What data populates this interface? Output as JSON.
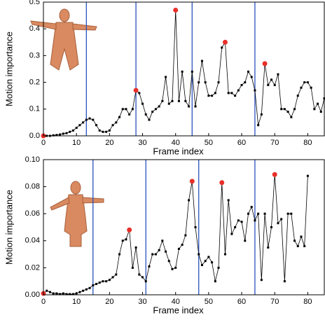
{
  "chart_data": [
    {
      "type": "line",
      "xlabel": "Frame index",
      "ylabel": "Motion importance",
      "xlim": [
        0,
        85
      ],
      "ylim": [
        0,
        0.5
      ],
      "xticks": [
        0,
        10,
        20,
        30,
        40,
        50,
        60,
        70,
        80
      ],
      "yticks": [
        {
          "value": 0,
          "label": "0.0"
        },
        0.1,
        0.2,
        0.3,
        0.4,
        0.5
      ],
      "x": [
        0,
        1,
        2,
        3,
        4,
        5,
        6,
        7,
        8,
        9,
        10,
        11,
        12,
        13,
        14,
        15,
        16,
        17,
        18,
        19,
        20,
        21,
        22,
        23,
        24,
        25,
        26,
        27,
        28,
        29,
        30,
        31,
        32,
        33,
        34,
        35,
        36,
        37,
        38,
        39,
        40,
        41,
        42,
        43,
        44,
        45,
        46,
        47,
        48,
        49,
        50,
        51,
        52,
        53,
        54,
        55,
        56,
        57,
        58,
        59,
        60,
        61,
        62,
        63,
        64,
        65,
        66,
        67,
        68,
        69,
        70,
        71,
        72,
        73,
        74,
        75,
        76,
        77,
        78,
        79,
        80,
        81,
        82,
        83,
        84,
        85
      ],
      "series": [
        {
          "color": "#000000",
          "values": [
            0.0,
            0.0,
            0.0,
            0.002,
            0.003,
            0.005,
            0.008,
            0.01,
            0.015,
            0.02,
            0.03,
            0.04,
            0.05,
            0.06,
            0.065,
            0.06,
            0.04,
            0.02,
            0.015,
            0.015,
            0.02,
            0.04,
            0.05,
            0.07,
            0.1,
            0.1,
            0.08,
            0.1,
            0.17,
            0.16,
            0.12,
            0.08,
            0.06,
            0.09,
            0.1,
            0.11,
            0.13,
            0.22,
            0.12,
            0.13,
            0.47,
            0.13,
            0.24,
            0.13,
            0.11,
            0.24,
            0.11,
            0.2,
            0.28,
            0.2,
            0.15,
            0.15,
            0.16,
            0.2,
            0.33,
            0.35,
            0.16,
            0.16,
            0.15,
            0.17,
            0.19,
            0.2,
            0.24,
            0.22,
            0.17,
            0.04,
            0.08,
            0.27,
            0.19,
            0.21,
            0.19,
            0.23,
            0.1,
            0.1,
            0.09,
            0.07,
            0.1,
            0.15,
            0.18,
            0.2,
            0.2,
            0.18,
            0.1,
            0.12,
            0.09,
            0.14
          ]
        }
      ],
      "highlights": {
        "color": "#e8302a",
        "x": [
          0,
          28,
          40,
          55,
          67
        ],
        "values": [
          0.0,
          0.17,
          0.47,
          0.35,
          0.27
        ]
      },
      "vlines": {
        "color": "#2a52be",
        "x": [
          13,
          28,
          45,
          64
        ]
      }
    },
    {
      "type": "line",
      "xlabel": "Frame index",
      "ylabel": "Motion importance",
      "xlim": [
        0,
        85
      ],
      "ylim": [
        0,
        0.1
      ],
      "xticks": [
        0,
        10,
        20,
        30,
        40,
        50,
        60,
        70,
        80
      ],
      "yticks": [
        {
          "value": 0,
          "label": "0.00"
        },
        0.02,
        0.04,
        0.06,
        0.08,
        {
          "value": 0.1,
          "label": "0.10"
        }
      ],
      "x": [
        0,
        1,
        2,
        3,
        4,
        5,
        6,
        7,
        8,
        9,
        10,
        11,
        12,
        13,
        14,
        15,
        16,
        17,
        18,
        19,
        20,
        21,
        22,
        23,
        24,
        25,
        26,
        27,
        28,
        29,
        30,
        31,
        32,
        33,
        34,
        35,
        36,
        37,
        38,
        39,
        40,
        41,
        42,
        43,
        44,
        45,
        46,
        47,
        48,
        49,
        50,
        51,
        52,
        53,
        54,
        55,
        56,
        57,
        58,
        59,
        60,
        61,
        62,
        63,
        64,
        65,
        66,
        67,
        68,
        69,
        70,
        71,
        72,
        73,
        74,
        75,
        76,
        77,
        78,
        79,
        80
      ],
      "series": [
        {
          "color": "#000000",
          "values": [
            0.001,
            0.003,
            0.002,
            0.001,
            0.001,
            0.0005,
            0.001,
            0.0005,
            0.0005,
            0.0005,
            0.001,
            0.002,
            0.003,
            0.004,
            0.005,
            0.007,
            0.008,
            0.009,
            0.01,
            0.01,
            0.011,
            0.013,
            0.015,
            0.03,
            0.04,
            0.041,
            0.048,
            0.02,
            0.035,
            0.015,
            0.013,
            0.01,
            0.021,
            0.03,
            0.03,
            0.033,
            0.04,
            0.032,
            0.025,
            0.019,
            0.02,
            0.034,
            0.037,
            0.044,
            0.07,
            0.084,
            0.05,
            0.03,
            0.022,
            0.025,
            0.028,
            0.024,
            0.01,
            0.02,
            0.083,
            0.03,
            0.07,
            0.045,
            0.05,
            0.055,
            0.054,
            0.04,
            0.06,
            0.065,
            0.055,
            0.06,
            0.011,
            0.06,
            0.035,
            0.05,
            0.089,
            0.053,
            0.056,
            0.01,
            0.06,
            0.06,
            0.04,
            0.036,
            0.043,
            0.036,
            0.088
          ]
        }
      ],
      "highlights": {
        "color": "#e8302a",
        "x": [
          0,
          26,
          45,
          54,
          70
        ],
        "values": [
          0.001,
          0.048,
          0.084,
          0.083,
          0.089
        ]
      },
      "vlines": {
        "color": "#2a52be",
        "x": [
          15,
          31,
          47,
          64
        ]
      }
    }
  ]
}
